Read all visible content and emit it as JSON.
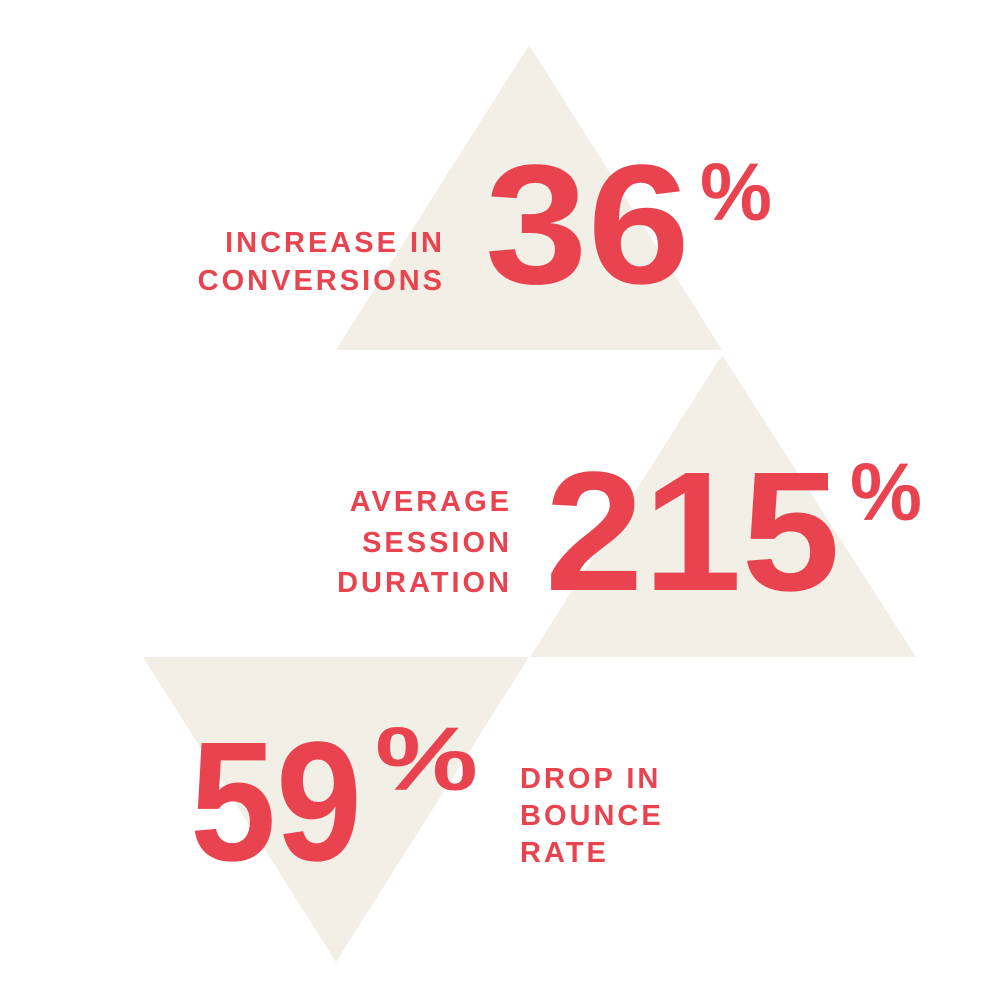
{
  "stats": [
    {
      "value": "36",
      "unit": "%",
      "label": [
        "INCREASE IN",
        "CONVERSIONS"
      ]
    },
    {
      "value": "215",
      "unit": "%",
      "label": [
        "AVERAGE",
        "SESSION",
        "DURATION"
      ]
    },
    {
      "value": "59",
      "unit": "%",
      "label": [
        "DROP IN",
        "BOUNCE",
        "RATE"
      ]
    }
  ]
}
